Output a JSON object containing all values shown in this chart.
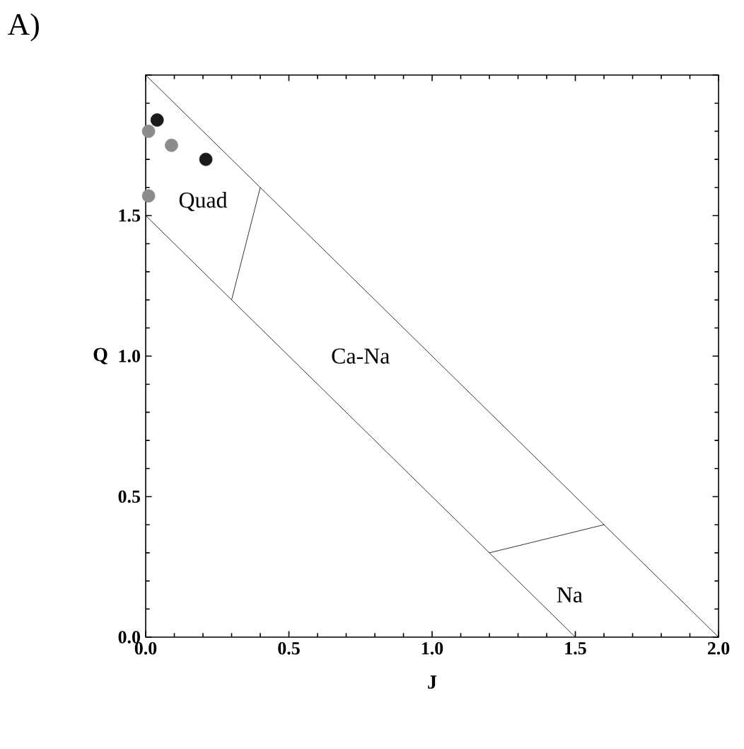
{
  "chart_data": {
    "type": "scatter",
    "xlabel": "J",
    "ylabel": "Q",
    "xlim": [
      0,
      2
    ],
    "ylim": [
      0,
      2
    ],
    "xticks": [
      {
        "value": 0,
        "label": "0.0"
      },
      {
        "value": 0.5,
        "label": "0.5"
      },
      {
        "value": 1,
        "label": "1.0"
      },
      {
        "value": 1.5,
        "label": "1.5"
      },
      {
        "value": 2,
        "label": "2.0"
      }
    ],
    "yticks": [
      {
        "value": 0,
        "label": "0.0"
      },
      {
        "value": 0.5,
        "label": "0.5"
      },
      {
        "value": 1,
        "label": "1.0"
      },
      {
        "value": 1.5,
        "label": "1.5"
      },
      {
        "value": 2,
        "label": null
      }
    ],
    "grid": false,
    "annotations": [
      "A)",
      "Quad",
      "Ca-Na",
      "Na"
    ],
    "series": [
      {
        "type": "line",
        "marker": "none",
        "color": "#000000",
        "x": [
          0,
          2
        ],
        "values": [
          2,
          0
        ]
      },
      {
        "type": "line",
        "marker": "none",
        "color": "#000000",
        "x": [
          0,
          1.5
        ],
        "values": [
          1.5,
          0
        ]
      },
      {
        "type": "line",
        "marker": "none",
        "color": "#000000",
        "x": [
          0.3,
          0.4
        ],
        "values": [
          1.2,
          1.6
        ]
      },
      {
        "type": "line",
        "marker": "none",
        "color": "#000000",
        "x": [
          1.2,
          1.6
        ],
        "values": [
          0.3,
          0.4
        ]
      },
      {
        "marker": "circle",
        "color": "#8c8c8c",
        "x": [
          0.01,
          0.01,
          0.09
        ],
        "values": [
          1.57,
          1.8,
          1.75
        ]
      },
      {
        "marker": "circle",
        "color": "#1a1a1a",
        "x": [
          0.04,
          0.21
        ],
        "values": [
          1.84,
          1.7
        ]
      }
    ]
  }
}
